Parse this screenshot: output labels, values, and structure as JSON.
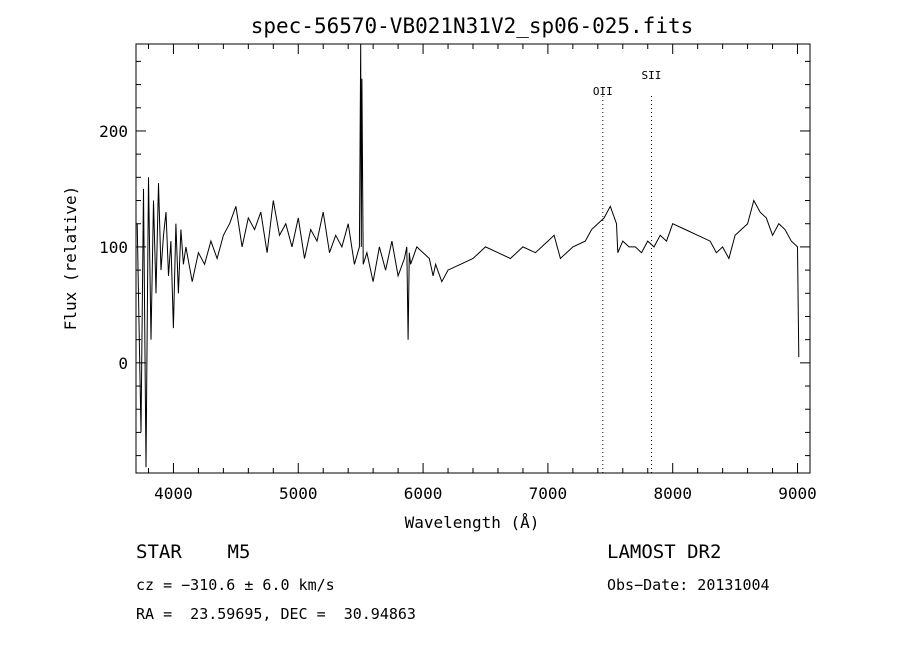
{
  "chart_data": {
    "type": "line",
    "title": "spec-56570-VB021N31V2_sp06-025.fits",
    "xlabel": "Wavelength (Å)",
    "ylabel": "Flux (relative)",
    "xlim": [
      3700,
      9100
    ],
    "ylim": [
      -95,
      275
    ],
    "x_ticks": [
      4000,
      5000,
      6000,
      7000,
      8000,
      9000
    ],
    "y_ticks": [
      0,
      100,
      200
    ],
    "grid": false,
    "lines": [
      {
        "name": "OII",
        "x": 7440
      },
      {
        "name": "SII",
        "x": 7830
      }
    ],
    "series": [
      {
        "x": [
          3710,
          3740,
          3760,
          3780,
          3800,
          3820,
          3840,
          3860,
          3880,
          3900,
          3920,
          3940,
          3960,
          3980,
          4000,
          4020,
          4040,
          4060,
          4080,
          4100,
          4150,
          4200,
          4250,
          4300,
          4350,
          4400,
          4450,
          4500,
          4550,
          4600,
          4650,
          4700,
          4750,
          4800,
          4850,
          4900,
          4950,
          5000,
          5050,
          5100,
          5150,
          5200,
          5250,
          5300,
          5350,
          5400,
          5450,
          5490,
          5500,
          5505,
          5510,
          5520,
          5550,
          5600,
          5650,
          5700,
          5750,
          5800,
          5850,
          5870,
          5880,
          5890,
          5900,
          5950,
          6000,
          6050,
          6080,
          6100,
          6150,
          6200,
          6300,
          6400,
          6500,
          6600,
          6700,
          6800,
          6900,
          7000,
          7050,
          7100,
          7150,
          7200,
          7300,
          7350,
          7400,
          7450,
          7500,
          7550,
          7560,
          7600,
          7650,
          7700,
          7750,
          7800,
          7850,
          7900,
          7950,
          8000,
          8100,
          8200,
          8300,
          8350,
          8400,
          8450,
          8500,
          8550,
          8600,
          8650,
          8700,
          8750,
          8800,
          8850,
          8900,
          8950,
          9000,
          9010
        ],
        "y": [
          120,
          -60,
          150,
          -90,
          160,
          20,
          140,
          60,
          155,
          80,
          110,
          130,
          75,
          105,
          30,
          120,
          60,
          115,
          85,
          100,
          70,
          95,
          85,
          105,
          90,
          110,
          120,
          135,
          100,
          125,
          115,
          130,
          95,
          140,
          110,
          120,
          100,
          125,
          90,
          115,
          105,
          130,
          95,
          110,
          100,
          120,
          85,
          100,
          278,
          100,
          245,
          85,
          95,
          70,
          100,
          80,
          105,
          75,
          90,
          100,
          20,
          95,
          85,
          100,
          95,
          90,
          75,
          85,
          70,
          80,
          85,
          90,
          100,
          95,
          90,
          100,
          95,
          105,
          110,
          90,
          95,
          100,
          105,
          115,
          120,
          125,
          135,
          120,
          95,
          105,
          100,
          100,
          95,
          105,
          100,
          110,
          105,
          120,
          115,
          110,
          105,
          95,
          100,
          90,
          110,
          115,
          120,
          140,
          130,
          125,
          110,
          120,
          115,
          105,
          100,
          5
        ]
      }
    ]
  },
  "info": {
    "object": "STAR    M5",
    "survey": "LAMOST DR2",
    "cz": "cz = −310.6 ± 6.0 km/s",
    "obs_date": "Obs−Date: 20131004",
    "coords": "RA =  23.59695, DEC =  30.94863"
  }
}
